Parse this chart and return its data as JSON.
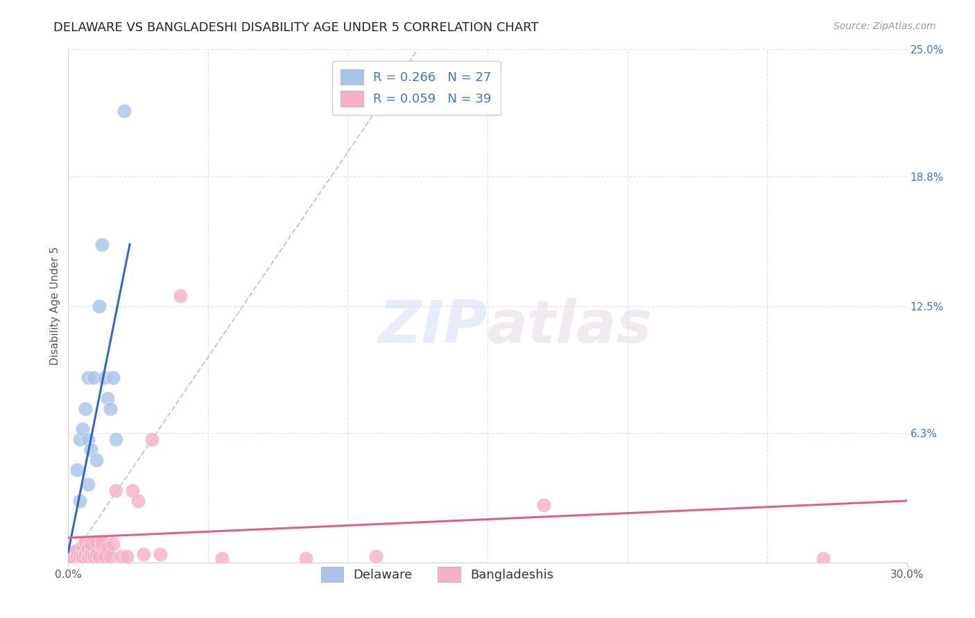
{
  "title": "DELAWARE VS BANGLADESHI DISABILITY AGE UNDER 5 CORRELATION CHART",
  "source": "Source: ZipAtlas.com",
  "ylabel": "Disability Age Under 5",
  "xlim": [
    0.0,
    0.3
  ],
  "ylim": [
    0.0,
    0.25
  ],
  "ytick_values_right": [
    0.25,
    0.188,
    0.125,
    0.063
  ],
  "ytick_labels_right": [
    "25.0%",
    "18.8%",
    "12.5%",
    "6.3%"
  ],
  "delaware_color": "#a8c4e8",
  "bangladeshi_color": "#f5b0c5",
  "regression_line_delaware_color": "#3366cc",
  "regression_line_bangladeshi_color": "#e06080",
  "dashed_line_color": "#b8ccee",
  "background_color": "#ffffff",
  "grid_color": "#dde5f0",
  "delaware_x": [
    0.001,
    0.001,
    0.002,
    0.002,
    0.003,
    0.003,
    0.004,
    0.004,
    0.004,
    0.005,
    0.005,
    0.006,
    0.006,
    0.007,
    0.007,
    0.007,
    0.008,
    0.009,
    0.01,
    0.011,
    0.012,
    0.013,
    0.014,
    0.015,
    0.016,
    0.017,
    0.02
  ],
  "delaware_y": [
    0.002,
    0.004,
    0.002,
    0.005,
    0.002,
    0.045,
    0.003,
    0.03,
    0.06,
    0.002,
    0.065,
    0.003,
    0.075,
    0.038,
    0.06,
    0.09,
    0.055,
    0.09,
    0.05,
    0.125,
    0.155,
    0.09,
    0.08,
    0.075,
    0.09,
    0.06,
    0.22
  ],
  "bangladeshi_x": [
    0.001,
    0.001,
    0.002,
    0.003,
    0.003,
    0.004,
    0.005,
    0.005,
    0.005,
    0.006,
    0.006,
    0.007,
    0.007,
    0.008,
    0.008,
    0.009,
    0.01,
    0.01,
    0.011,
    0.012,
    0.012,
    0.013,
    0.014,
    0.015,
    0.016,
    0.017,
    0.019,
    0.021,
    0.023,
    0.025,
    0.027,
    0.03,
    0.033,
    0.04,
    0.055,
    0.085,
    0.11,
    0.17,
    0.27
  ],
  "bangladeshi_y": [
    0.002,
    0.004,
    0.002,
    0.003,
    0.006,
    0.003,
    0.002,
    0.008,
    0.003,
    0.004,
    0.01,
    0.003,
    0.007,
    0.004,
    0.009,
    0.003,
    0.004,
    0.01,
    0.003,
    0.008,
    0.01,
    0.003,
    0.007,
    0.003,
    0.009,
    0.035,
    0.003,
    0.003,
    0.035,
    0.03,
    0.004,
    0.06,
    0.004,
    0.13,
    0.002,
    0.002,
    0.003,
    0.028,
    0.002
  ],
  "del_regline_x": [
    0.0,
    0.022
  ],
  "del_regline_y": [
    0.005,
    0.155
  ],
  "ban_regline_x": [
    0.0,
    0.3
  ],
  "ban_regline_y": [
    0.012,
    0.03
  ],
  "dash_line_x": [
    0.0,
    0.125
  ],
  "dash_line_y": [
    0.0,
    0.25
  ]
}
